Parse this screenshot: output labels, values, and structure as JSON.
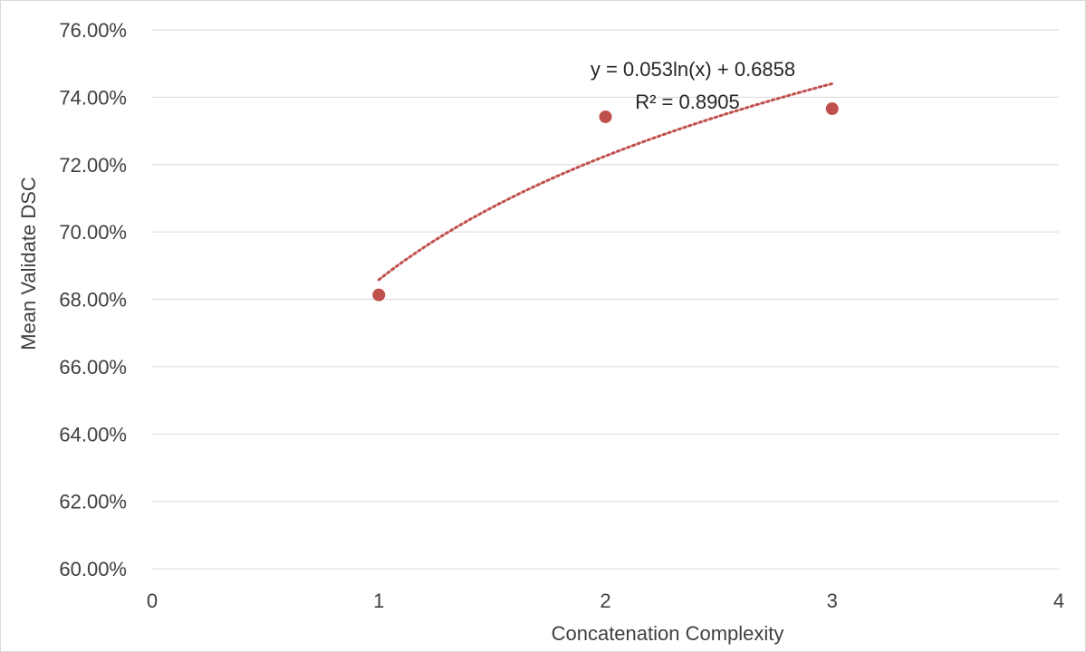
{
  "chart_data": {
    "type": "scatter",
    "title": "",
    "xlabel": "Concatenation Complexity",
    "ylabel": "Mean Validate DSC",
    "xlim": [
      0,
      4
    ],
    "ylim": [
      0.6,
      0.76
    ],
    "x_ticks": [
      "0",
      "1",
      "2",
      "3",
      "4"
    ],
    "y_ticks": [
      "60.00%",
      "62.00%",
      "64.00%",
      "66.00%",
      "68.00%",
      "70.00%",
      "72.00%",
      "74.00%",
      "76.00%"
    ],
    "y_tick_values": [
      0.6,
      0.62,
      0.64,
      0.66,
      0.68,
      0.7,
      0.72,
      0.74,
      0.76
    ],
    "x_tick_values": [
      0,
      1,
      2,
      3,
      4
    ],
    "grid": "horizontal",
    "series": [
      {
        "x": [
          1,
          2,
          3
        ],
        "y": [
          0.6813,
          0.7342,
          0.7366
        ],
        "color": "#c0504d"
      }
    ],
    "trendline": {
      "type": "logarithmic",
      "a": 0.053,
      "b": 0.6858,
      "x_range": [
        1,
        3
      ],
      "color": "#c0504d",
      "equation": "y = 0.053ln(x) + 0.6858",
      "r_squared": "R² = 0.8905"
    },
    "colors": {
      "grid": "#d9d9d9",
      "text": "#404040",
      "frame": "#d9d9d9"
    }
  }
}
